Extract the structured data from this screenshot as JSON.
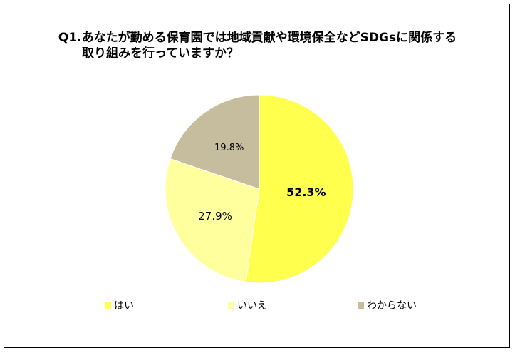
{
  "chart_data": {
    "type": "pie",
    "title_lines": [
      "Q1.あなたが勤める保育園では地域貢献や環境保全などSDGsに関係する",
      "取り組みを行っていますか？"
    ],
    "categories": [
      "はい",
      "いいえ",
      "わからない"
    ],
    "values": [
      52.3,
      27.9,
      19.8
    ],
    "labels": [
      "52.3%",
      "27.9%",
      "19.8%"
    ],
    "colors": [
      "#ffff4d",
      "#ffff9e",
      "#c6bd9f"
    ],
    "legend_position": "bottom",
    "start": "12 o'clock, clockwise"
  }
}
